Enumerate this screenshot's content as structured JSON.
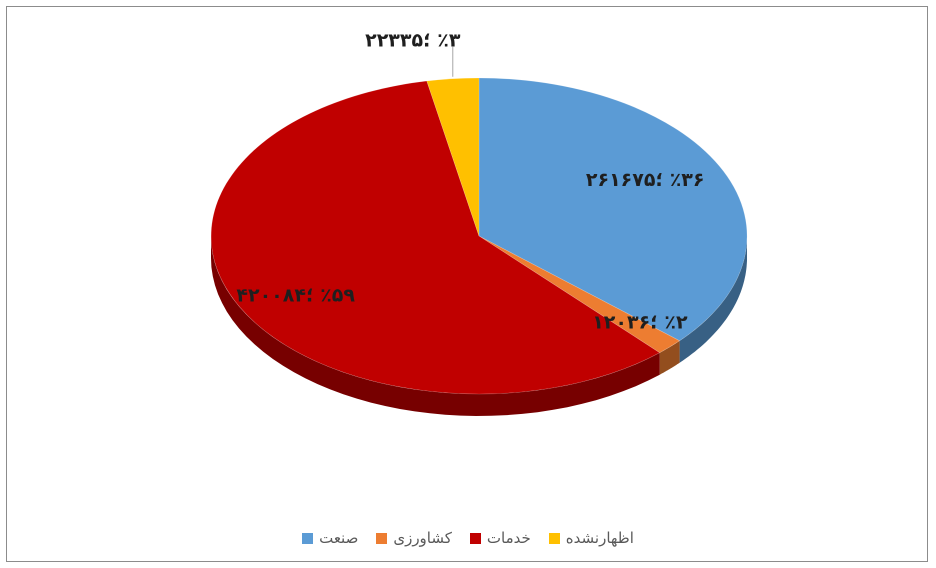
{
  "chart_data": {
    "type": "pie",
    "title": "",
    "slices": [
      {
        "name": "صنعت",
        "value": 261675,
        "percent": 36,
        "label": "٪۳۶ ؛۲۶۱۶۷۵",
        "color": "#5b9bd5"
      },
      {
        "name": "کشاورزی",
        "value": 12036,
        "percent": 2,
        "label": "٪۲ ؛۱۲۰۳۶",
        "color": "#ed7d31"
      },
      {
        "name": "خدمات",
        "value": 420084,
        "percent": 59,
        "label": "٪۵۹ ؛۴۲۰۰۸۴",
        "color": "#c00000"
      },
      {
        "name": "اظهارنشده",
        "value": 22335,
        "percent": 3,
        "label": "٪۳ ؛۲۲۳۳۵",
        "color": "#ffc000"
      }
    ],
    "legend_position": "bottom",
    "three_d": true
  }
}
